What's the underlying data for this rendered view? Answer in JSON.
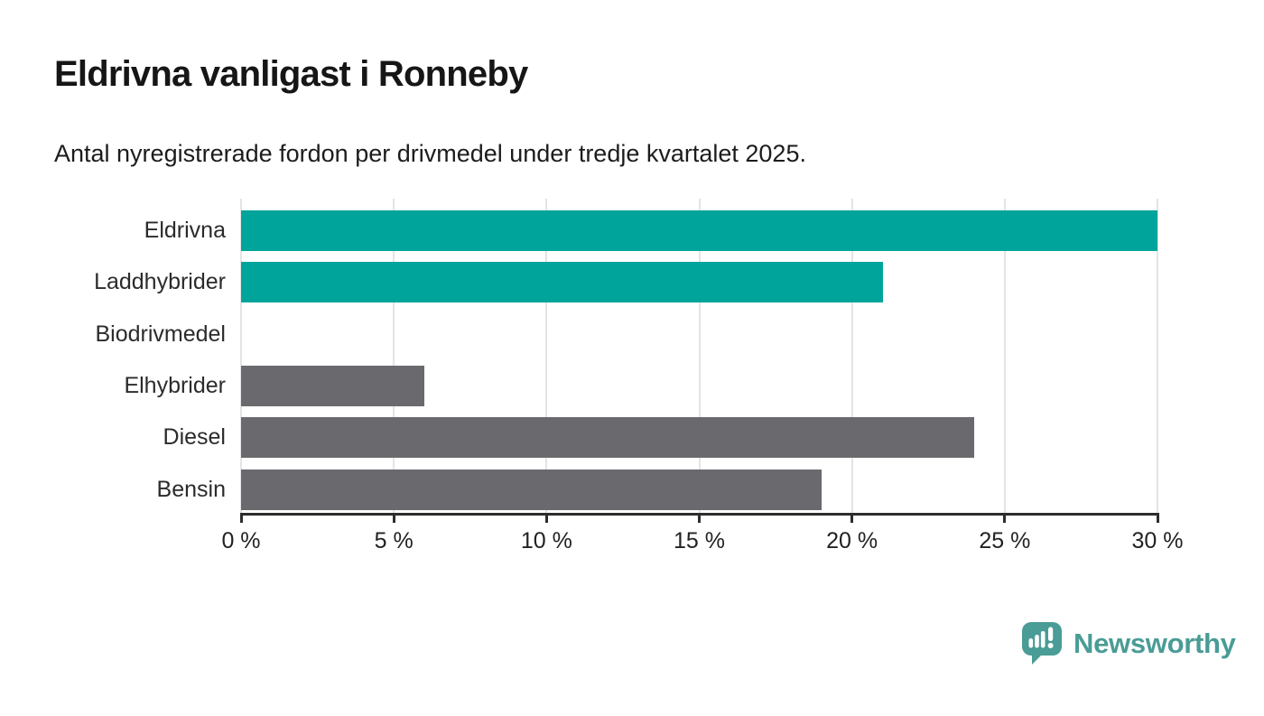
{
  "header": {
    "title": "Eldrivna vanligast i Ronneby",
    "subtitle": "Antal nyregistrerade fordon per drivmedel under tredje kvartalet 2025."
  },
  "chart_data": {
    "type": "bar",
    "orientation": "horizontal",
    "title": "Eldrivna vanligast i Ronneby",
    "subtitle": "Antal nyregistrerade fordon per drivmedel under tredje kvartalet 2025.",
    "categories": [
      "Eldrivna",
      "Laddhybrider",
      "Biodrivmedel",
      "Elhybrider",
      "Diesel",
      "Bensin"
    ],
    "values": [
      30,
      21,
      0,
      6,
      24,
      19
    ],
    "unit": "%",
    "bar_colors": [
      "#00a49b",
      "#00a49b",
      "#6a6a6e",
      "#6a6a6e",
      "#6a6a6e",
      "#6a6a6e"
    ],
    "xlim": [
      0,
      30
    ],
    "xticks": [
      0,
      5,
      10,
      15,
      20,
      25,
      30
    ],
    "xtick_labels": [
      "0 %",
      "5 %",
      "10 %",
      "15 %",
      "20 %",
      "25 %",
      "30 %"
    ],
    "grid": true,
    "legend_position": "none"
  },
  "footer": {
    "brand": "Newsworthy"
  },
  "colors": {
    "accent_teal": "#00a49b",
    "bar_gray": "#6a6a6e",
    "gridline": "#e4e4e4",
    "axis": "#2d2d2d",
    "text": "#1c1c1c",
    "logo_teal": "#4a9c96"
  }
}
